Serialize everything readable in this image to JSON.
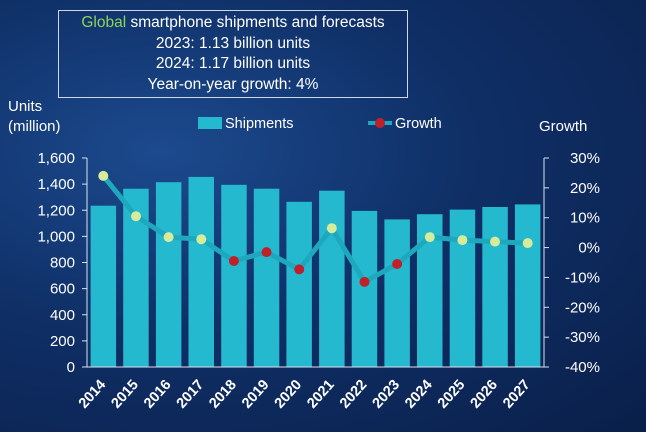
{
  "title": {
    "accent": "Global",
    "rest": " smartphone shipments and forecasts",
    "lines": [
      "2023: 1.13 billion units",
      "2024: 1.17 billion units",
      "Year-on-year growth: 4%"
    ]
  },
  "colors": {
    "bar": "#24b9cf",
    "bar_dark": "#1a98ae",
    "line": "#1ea8bd",
    "marker_neg": "#c0202a",
    "marker_pos": "#d6ec9a",
    "accent": "#8ed35a"
  },
  "chart_data": {
    "type": "bar",
    "categories": [
      "2014",
      "2015",
      "2016",
      "2017",
      "2018",
      "2019",
      "2020",
      "2021",
      "2022",
      "2023",
      "2024",
      "2025",
      "2026",
      "2027"
    ],
    "series": [
      {
        "name": "Shipments",
        "type": "bar",
        "axis": "left",
        "values": [
          1235,
          1365,
          1415,
          1455,
          1395,
          1365,
          1265,
          1350,
          1195,
          1130,
          1170,
          1205,
          1225,
          1245
        ]
      },
      {
        "name": "Growth",
        "type": "line",
        "axis": "right",
        "unit": "%",
        "values": [
          24,
          10.5,
          3.5,
          2.8,
          -4.5,
          -1.5,
          -7.3,
          6.5,
          -11.5,
          -5.5,
          3.5,
          2.5,
          2,
          1.5
        ]
      }
    ],
    "left_axis": {
      "label_lines": [
        "Units",
        "(million)"
      ],
      "ylim": [
        0,
        1600
      ],
      "ticks": [
        "0",
        "200",
        "400",
        "600",
        "800",
        "1,000",
        "1,200",
        "1,400",
        "1,600"
      ]
    },
    "right_axis": {
      "label": "Growth",
      "ylim": [
        -40,
        30
      ],
      "ticks": [
        "-40%",
        "-30%",
        "-20%",
        "-10%",
        "0%",
        "10%",
        "20%",
        "30%"
      ]
    },
    "legend": {
      "position": "top",
      "items": [
        "Shipments",
        "Growth"
      ]
    },
    "grid": false
  }
}
